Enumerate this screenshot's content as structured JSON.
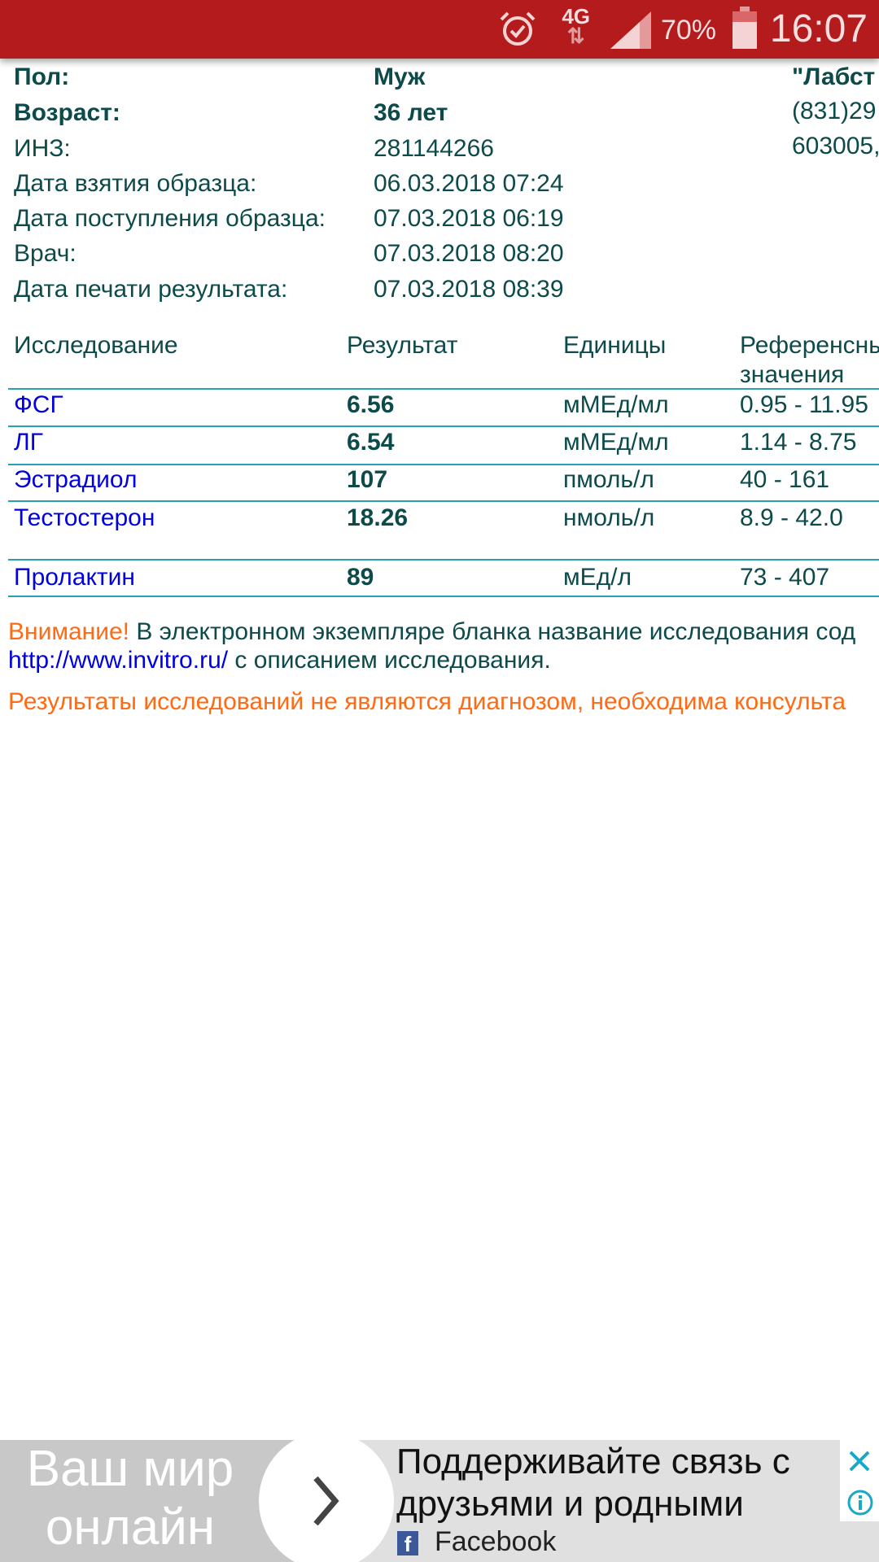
{
  "status_bar": {
    "network": "4G",
    "battery": "70%",
    "battery_level": 70,
    "time": "16:07",
    "icons": [
      "alarm-icon",
      "data-transfer-icon",
      "signal-icon",
      "battery-icon"
    ]
  },
  "patient": {
    "rows": [
      {
        "label": "Пол:",
        "value": "Муж",
        "bold": true
      },
      {
        "label": "Возраст:",
        "value": "36 лет",
        "bold": true
      },
      {
        "label": "ИНЗ:",
        "value": "281144266"
      },
      {
        "label": "Дата взятия образца:",
        "value": "06.03.2018 07:24"
      },
      {
        "label": "Дата поступления образца:",
        "value": "07.03.2018 06:19"
      },
      {
        "label": "Врач:",
        "value": "07.03.2018 08:20"
      },
      {
        "label": "Дата печати результата:",
        "value": "07.03.2018 08:39"
      }
    ],
    "lab_lines": [
      "\"Лабст",
      "(831)29",
      "603005,"
    ]
  },
  "table": {
    "headers": [
      "Исследование",
      "Результат",
      "Единицы",
      "Референсные",
      "значения"
    ],
    "rows": [
      {
        "test": "ФСГ",
        "result": "6.56",
        "units": "мМЕд/мл",
        "ref": "0.95 - 11.95"
      },
      {
        "test": "ЛГ",
        "result": "6.54",
        "units": "мМЕд/мл",
        "ref": "1.14 - 8.75"
      },
      {
        "test": "Эстрадиол",
        "result": "107",
        "units": "пмоль/л",
        "ref": "40 - 161"
      },
      {
        "test": "Тестостерон",
        "result": "18.26",
        "units": "нмоль/л",
        "ref": "8.9 - 42.0"
      },
      {
        "test": "Пролактин",
        "result": "89",
        "units": "мЕд/л",
        "ref": "73 - 407"
      }
    ]
  },
  "notice": {
    "attention": "Внимание!",
    "text1": " В электронном экземпляре бланка название исследования сод",
    "link": "http://www.invitro.ru/",
    "text2": " с описанием исследования.",
    "disclaimer": "Результаты исследований не являются диагнозом, необходима консульта"
  },
  "ad": {
    "left_line1": "Ваш мир",
    "left_line2": "онлайн",
    "line1": "Поддерживайте связь с",
    "line2": "друзьями и родными",
    "source": "Facebook",
    "fb_letter": "f"
  },
  "colors": {
    "status_bar": "#b31b1d",
    "text": "#0d4a4a",
    "link": "#0000e0",
    "warning": "#ff6a13",
    "divider": "#2aa0b0"
  }
}
